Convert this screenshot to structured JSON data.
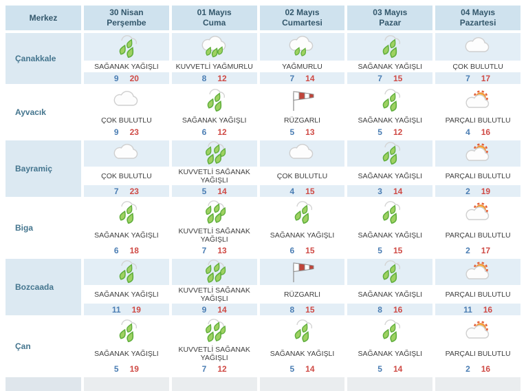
{
  "header": {
    "center_label": "Merkez",
    "days": [
      {
        "date": "30 Nisan",
        "weekday": "Perşembe"
      },
      {
        "date": "01 Mayıs",
        "weekday": "Cuma"
      },
      {
        "date": "02 Mayıs",
        "weekday": "Cumartesi"
      },
      {
        "date": "03 Mayıs",
        "weekday": "Pazar"
      },
      {
        "date": "04 Mayıs",
        "weekday": "Pazartesi"
      }
    ]
  },
  "rows": [
    {
      "center": "Çanakkale",
      "shaded": true,
      "cells": [
        {
          "icon": "shower-rain-icon",
          "desc": "SAĞANAK YAĞIŞLI",
          "min": "9",
          "max": "20"
        },
        {
          "icon": "heavy-rain-icon",
          "desc": "KUVVETLİ YAĞMURLU",
          "min": "8",
          "max": "12"
        },
        {
          "icon": "rain-icon",
          "desc": "YAĞMURLU",
          "min": "7",
          "max": "14"
        },
        {
          "icon": "shower-rain-icon",
          "desc": "SAĞANAK YAĞIŞLI",
          "min": "7",
          "max": "15"
        },
        {
          "icon": "cloudy-icon",
          "desc": "ÇOK BULUTLU",
          "min": "7",
          "max": "17"
        }
      ]
    },
    {
      "center": "Ayvacık",
      "shaded": false,
      "cells": [
        {
          "icon": "cloudy-icon",
          "desc": "ÇOK BULUTLU",
          "min": "9",
          "max": "23"
        },
        {
          "icon": "shower-rain-icon",
          "desc": "SAĞANAK YAĞIŞLI",
          "min": "6",
          "max": "12"
        },
        {
          "icon": "windsock-icon",
          "desc": "RÜZGARLI",
          "min": "5",
          "max": "13"
        },
        {
          "icon": "shower-rain-icon",
          "desc": "SAĞANAK YAĞIŞLI",
          "min": "5",
          "max": "12"
        },
        {
          "icon": "partly-cloudy-icon",
          "desc": "PARÇALI BULUTLU",
          "min": "4",
          "max": "16"
        }
      ]
    },
    {
      "center": "Bayramiç",
      "shaded": true,
      "cells": [
        {
          "icon": "cloudy-icon",
          "desc": "ÇOK BULUTLU",
          "min": "7",
          "max": "23"
        },
        {
          "icon": "heavy-shower-rain-icon",
          "desc": "KUVVETLİ SAĞANAK YAĞIŞLI",
          "min": "5",
          "max": "14"
        },
        {
          "icon": "cloudy-icon",
          "desc": "ÇOK BULUTLU",
          "min": "4",
          "max": "15"
        },
        {
          "icon": "shower-rain-icon",
          "desc": "SAĞANAK YAĞIŞLI",
          "min": "3",
          "max": "14"
        },
        {
          "icon": "partly-cloudy-icon",
          "desc": "PARÇALI BULUTLU",
          "min": "2",
          "max": "19"
        }
      ]
    },
    {
      "center": "Biga",
      "shaded": false,
      "cells": [
        {
          "icon": "shower-rain-icon",
          "desc": "SAĞANAK YAĞIŞLI",
          "min": "6",
          "max": "18"
        },
        {
          "icon": "heavy-shower-rain-icon",
          "desc": "KUVVETLİ SAĞANAK YAĞIŞLI",
          "min": "7",
          "max": "13"
        },
        {
          "icon": "shower-rain-icon",
          "desc": "SAĞANAK YAĞIŞLI",
          "min": "6",
          "max": "15"
        },
        {
          "icon": "shower-rain-icon",
          "desc": "SAĞANAK YAĞIŞLI",
          "min": "5",
          "max": "15"
        },
        {
          "icon": "partly-cloudy-icon",
          "desc": "PARÇALI BULUTLU",
          "min": "2",
          "max": "17"
        }
      ]
    },
    {
      "center": "Bozcaada",
      "shaded": true,
      "cells": [
        {
          "icon": "shower-rain-icon",
          "desc": "SAĞANAK YAĞIŞLI",
          "min": "11",
          "max": "19"
        },
        {
          "icon": "heavy-shower-rain-icon",
          "desc": "KUVVETLİ SAĞANAK YAĞIŞLI",
          "min": "9",
          "max": "14"
        },
        {
          "icon": "windsock-icon",
          "desc": "RÜZGARLI",
          "min": "8",
          "max": "15"
        },
        {
          "icon": "shower-rain-icon",
          "desc": "SAĞANAK YAĞIŞLI",
          "min": "8",
          "max": "16"
        },
        {
          "icon": "partly-cloudy-icon",
          "desc": "PARÇALI BULUTLU",
          "min": "11",
          "max": "16"
        }
      ]
    },
    {
      "center": "Çan",
      "shaded": false,
      "cells": [
        {
          "icon": "shower-rain-icon",
          "desc": "SAĞANAK YAĞIŞLI",
          "min": "5",
          "max": "19"
        },
        {
          "icon": "heavy-shower-rain-icon",
          "desc": "KUVVETLİ SAĞANAK YAĞIŞLI",
          "min": "7",
          "max": "12"
        },
        {
          "icon": "shower-rain-icon",
          "desc": "SAĞANAK YAĞIŞLI",
          "min": "5",
          "max": "14"
        },
        {
          "icon": "shower-rain-icon",
          "desc": "SAĞANAK YAĞIŞLI",
          "min": "5",
          "max": "14"
        },
        {
          "icon": "partly-cloudy-icon",
          "desc": "PARÇALI BULUTLU",
          "min": "2",
          "max": "16"
        }
      ]
    }
  ],
  "colors": {
    "header_bg": "#cfe2ee",
    "header_text": "#33576b",
    "shaded_cell_bg": "#e3eef6",
    "shaded_label_bg": "#dce9f2",
    "min_temp": "#4a7db3",
    "max_temp": "#cf4a45",
    "desc_text": "#3d3d3d",
    "center_text": "#44758e",
    "rain_drop_green": "#9ed162",
    "windsock_red": "#c0453a",
    "sun_orange": "#f9b33c"
  }
}
